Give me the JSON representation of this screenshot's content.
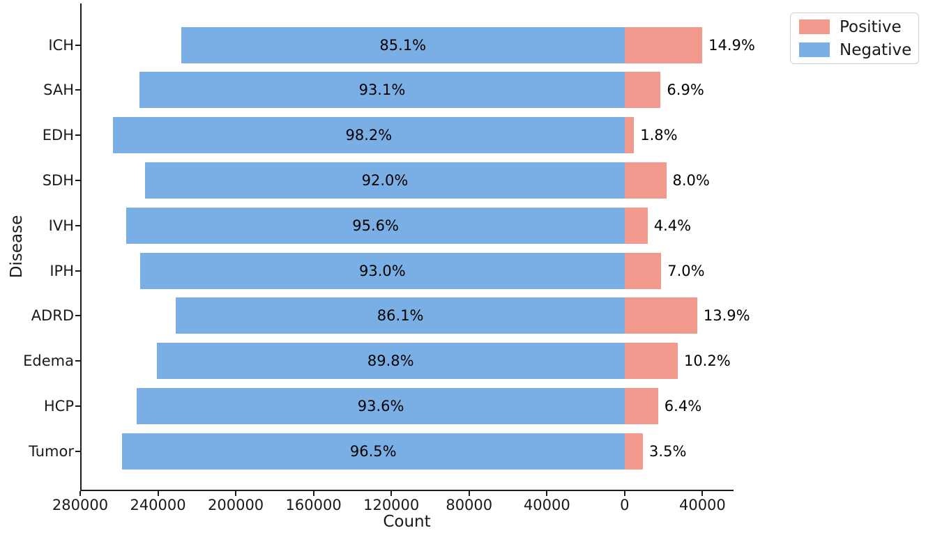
{
  "chart_data": {
    "type": "bar",
    "orientation": "horizontal",
    "stacked": true,
    "diverging": true,
    "title": "",
    "xlabel": "Count",
    "ylabel": "Disease",
    "grid": false,
    "categories": [
      "ICH",
      "SAH",
      "EDH",
      "SDH",
      "IVH",
      "IPH",
      "ADRD",
      "Edema",
      "HCP",
      "Tumor"
    ],
    "series": [
      {
        "name": "Negative",
        "direction": "left",
        "color": "#79AFE4",
        "percents": [
          85.1,
          93.1,
          98.2,
          92.0,
          95.6,
          93.0,
          86.1,
          89.8,
          93.6,
          96.5
        ],
        "labels": [
          "85.1%",
          "93.1%",
          "98.2%",
          "92.0%",
          "95.6%",
          "93.0%",
          "86.1%",
          "89.8%",
          "93.6%",
          "96.5%"
        ],
        "counts_est": [
          228100,
          249500,
          263200,
          246600,
          256200,
          249200,
          230700,
          240700,
          250800,
          258600
        ]
      },
      {
        "name": "Positive",
        "direction": "right",
        "color": "#F0998C",
        "percents": [
          14.9,
          6.9,
          1.8,
          8.0,
          4.4,
          7.0,
          13.9,
          10.2,
          6.4,
          3.5
        ],
        "labels": [
          "14.9%",
          "6.9%",
          "1.8%",
          "8.0%",
          "4.4%",
          "7.0%",
          "13.9%",
          "10.2%",
          "6.4%",
          "3.5%"
        ],
        "counts_est": [
          39900,
          18500,
          4800,
          21400,
          11800,
          18800,
          37300,
          27300,
          17200,
          9400
        ]
      }
    ],
    "total_per_category_est": 268000,
    "xlim": [
      -280000,
      56000
    ],
    "x_ticks": [
      {
        "value": -280000,
        "label": "280000"
      },
      {
        "value": -240000,
        "label": "240000"
      },
      {
        "value": -200000,
        "label": "200000"
      },
      {
        "value": -160000,
        "label": "160000"
      },
      {
        "value": -120000,
        "label": "120000"
      },
      {
        "value": -80000,
        "label": "80000"
      },
      {
        "value": -40000,
        "label": "40000"
      },
      {
        "value": 0,
        "label": "0"
      },
      {
        "value": 40000,
        "label": "40000"
      }
    ],
    "legend": {
      "position": "upper-right-outside",
      "entries": [
        {
          "label": "Positive",
          "color": "#F0998C"
        },
        {
          "label": "Negative",
          "color": "#79AFE4"
        }
      ]
    },
    "colors": {
      "negative": "#79AFE4",
      "positive": "#F0998C",
      "axis": "#1a1a1a",
      "background": "#ffffff"
    }
  }
}
